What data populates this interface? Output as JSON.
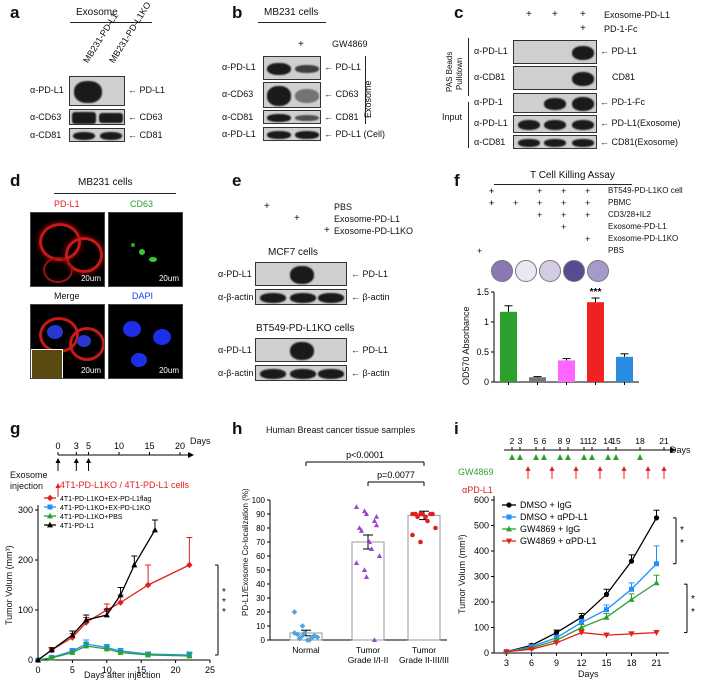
{
  "panels": {
    "a": "a",
    "b": "b",
    "c": "c",
    "d": "d",
    "e": "e",
    "f": "f",
    "g": "g",
    "h": "h",
    "i": "i"
  },
  "a": {
    "header": "Exosome",
    "lanes": [
      "MB231-PD-L1",
      "MB231-PD-L1KO"
    ],
    "left": [
      "α-PD-L1",
      "α-CD63",
      "α-CD81"
    ],
    "right": [
      "← PD-L1",
      "← CD63",
      "← CD81"
    ]
  },
  "b": {
    "title": "MB231 cells",
    "plus": "+",
    "gw": "GW4869",
    "left": [
      "α-PD-L1",
      "α-CD63",
      "α-CD81",
      "α-PD-L1"
    ],
    "right": [
      "← PD-L1",
      "← CD63",
      "← CD81",
      "← PD-L1 (Cell)"
    ],
    "side": "Exosome"
  },
  "c": {
    "row1": "Exosome-PD-L1",
    "row2": "PD-1-Fc",
    "plus": "+",
    "pull1": "PAS Beads",
    "pull2": "Pulldown",
    "input": "Input",
    "left": [
      "α-PD-L1",
      "α-CD81",
      "α-PD-1",
      "α-PD-L1",
      "α-CD81"
    ],
    "right": [
      "← PD-L1",
      "CD81",
      "← PD-1-Fc",
      "← PD-L1(Exosome)",
      "← CD81(Exosome)"
    ]
  },
  "d": {
    "title": "MB231 cells",
    "labels": [
      "PD-L1",
      "CD63",
      "Merge",
      "DAPI"
    ],
    "scale": "20um"
  },
  "e": {
    "treat": [
      "PBS",
      "Exosome-PD-L1",
      "Exosome-PD-L1KO"
    ],
    "plus": "+",
    "cell1": "MCF7 cells",
    "cell2": "BT549-PD-L1KO cells",
    "left": [
      "α-PD-L1",
      "α-β-actin"
    ],
    "right": [
      "← PD-L1",
      "← β-actin"
    ]
  },
  "f": {
    "title": "T Cell Killing Assay",
    "rows": [
      "BT549-PD-L1KO cell",
      "PBMC",
      "CD3/28+IL2",
      "Exosome-PD-L1",
      "Exosome-PD-L1KO",
      "PBS"
    ],
    "sig": "***",
    "plus": "+"
  },
  "g": {
    "inj": "Exosome injection",
    "days_label": "Days",
    "cells": "4T1-PD-L1KO / 4T1-PD-L1 cells",
    "stars": "* * *"
  },
  "h": {
    "title": "Human Breast cancer tissue samples",
    "p1": "p<0.0001",
    "p2": "p=0.0077"
  },
  "i": {
    "gw": "GW4869",
    "apd": "αPD-L1",
    "days_label": "Days",
    "stars1": "* *",
    "stars2": "* *"
  },
  "chart_data": [
    {
      "panel": "f",
      "type": "bar",
      "ylabel": "OD570 Absorbance",
      "ylim": [
        0,
        1.5
      ],
      "yticks": [
        0,
        0.5,
        1,
        1.5
      ],
      "values": [
        1.17,
        0.08,
        0.36,
        1.33,
        0.42
      ],
      "errors": [
        0.1,
        0.01,
        0.03,
        0.07,
        0.05
      ],
      "colors": [
        "#2ca02c",
        "#777777",
        "#ff66ff",
        "#ee2222",
        "#2a8ce0"
      ]
    },
    {
      "panel": "g",
      "type": "line",
      "xlabel": "Days after injection",
      "ylabel": "Tumor Volum (mm³)",
      "xlim": [
        0,
        25
      ],
      "ylim": [
        0,
        300
      ],
      "xticks": [
        0,
        5,
        10,
        15,
        20,
        25
      ],
      "yticks": [
        0,
        100,
        200,
        300
      ],
      "timeline_ticks": [
        0,
        3,
        5,
        10,
        15,
        20
      ],
      "series": [
        {
          "name": "4T1-PD-L1KO+EX-PD-L1flag",
          "color": "#e02020",
          "marker": "diamond",
          "x": [
            0,
            2,
            5,
            7,
            10,
            12,
            16,
            22
          ],
          "y": [
            0,
            20,
            45,
            75,
            100,
            115,
            150,
            190
          ],
          "err": [
            0,
            5,
            8,
            10,
            12,
            15,
            40,
            55
          ]
        },
        {
          "name": "4T1-PD-L1KO+EX-PD-L1KO",
          "color": "#1e90ff",
          "marker": "square",
          "x": [
            0,
            2,
            5,
            7,
            10,
            12,
            16,
            22
          ],
          "y": [
            0,
            5,
            18,
            32,
            25,
            18,
            12,
            10
          ],
          "err": [
            0,
            3,
            5,
            8,
            6,
            5,
            4,
            6
          ]
        },
        {
          "name": "4T1-PD-L1KO+PBS",
          "color": "#2ca02c",
          "marker": "triangle",
          "x": [
            0,
            2,
            5,
            7,
            10,
            12,
            16,
            22
          ],
          "y": [
            0,
            4,
            15,
            28,
            22,
            15,
            10,
            8
          ],
          "err": [
            0,
            3,
            4,
            6,
            5,
            4,
            4,
            5
          ]
        },
        {
          "name": "4T1-PD-L1",
          "color": "#000000",
          "marker": "triangle",
          "x": [
            0,
            2,
            5,
            7,
            10,
            12,
            14,
            17
          ],
          "y": [
            0,
            20,
            50,
            80,
            90,
            130,
            190,
            260
          ],
          "err": [
            0,
            4,
            8,
            10,
            12,
            15,
            18,
            20
          ]
        }
      ]
    },
    {
      "panel": "h",
      "type": "scatter",
      "ylabel": "PD-L1/Exosome Co-localization (%)",
      "ylim": [
        0,
        100
      ],
      "yticks": [
        0,
        10,
        20,
        30,
        40,
        50,
        60,
        70,
        80,
        90,
        100
      ],
      "categories": [
        "Normal",
        "Tumor Grade I/I-II",
        "Tumor Grade II-III/III"
      ],
      "bar_means": [
        5,
        70,
        89
      ],
      "bar_errors": [
        2,
        5,
        3
      ],
      "colors": [
        "#4fa3e0",
        "#9b44d6",
        "#e02020"
      ],
      "points": [
        [
          20,
          10,
          5,
          2,
          3,
          4,
          1,
          0,
          0,
          2,
          5,
          3
        ],
        [
          95,
          92,
          90,
          85,
          82,
          80,
          78,
          70,
          65,
          60,
          55,
          50,
          45,
          0,
          88
        ],
        [
          90,
          90,
          90,
          90,
          90,
          90,
          88,
          88,
          85,
          80,
          75,
          70,
          90
        ]
      ]
    },
    {
      "panel": "i",
      "type": "line",
      "xlabel": "Days",
      "ylabel": "Tumor Volum (mm³)",
      "xlim": [
        1.5,
        22.5
      ],
      "ylim": [
        0,
        600
      ],
      "xticks": [
        3,
        6,
        9,
        12,
        15,
        18,
        21
      ],
      "yticks": [
        0,
        100,
        200,
        300,
        400,
        500,
        600
      ],
      "gw_days": [
        2,
        3,
        5,
        6,
        8,
        9,
        11,
        12,
        14,
        15,
        18
      ],
      "apd_days": [
        4,
        7,
        10,
        13,
        16,
        19,
        21
      ],
      "timeline_labels": [
        "2",
        "3",
        "5",
        "6",
        "8",
        "9",
        "11",
        "12",
        "14",
        "15",
        "18",
        "21"
      ],
      "series": [
        {
          "name": "DMSO + IgG",
          "color": "#000000",
          "marker": "circle",
          "x": [
            3,
            6,
            9,
            12,
            15,
            18,
            21
          ],
          "y": [
            5,
            30,
            80,
            140,
            230,
            360,
            530
          ],
          "err": [
            2,
            5,
            10,
            15,
            20,
            25,
            30
          ]
        },
        {
          "name": "DMSO + αPD-L1",
          "color": "#1e90ff",
          "marker": "square",
          "x": [
            3,
            6,
            9,
            12,
            15,
            18,
            21
          ],
          "y": [
            5,
            25,
            60,
            120,
            170,
            250,
            350
          ],
          "err": [
            2,
            5,
            10,
            12,
            18,
            25,
            70
          ]
        },
        {
          "name": "GW4869 + IgG",
          "color": "#2ca02c",
          "marker": "triangle",
          "x": [
            3,
            6,
            9,
            12,
            15,
            18,
            21
          ],
          "y": [
            5,
            20,
            50,
            100,
            140,
            210,
            275
          ],
          "err": [
            2,
            4,
            8,
            12,
            15,
            22,
            30
          ]
        },
        {
          "name": "GW4869 + αPD-L1",
          "color": "#e02020",
          "marker": "tridown",
          "x": [
            3,
            6,
            9,
            12,
            15,
            18,
            21
          ],
          "y": [
            5,
            15,
            40,
            80,
            70,
            75,
            80
          ],
          "err": [
            2,
            3,
            6,
            10,
            8,
            8,
            8
          ]
        }
      ]
    }
  ]
}
